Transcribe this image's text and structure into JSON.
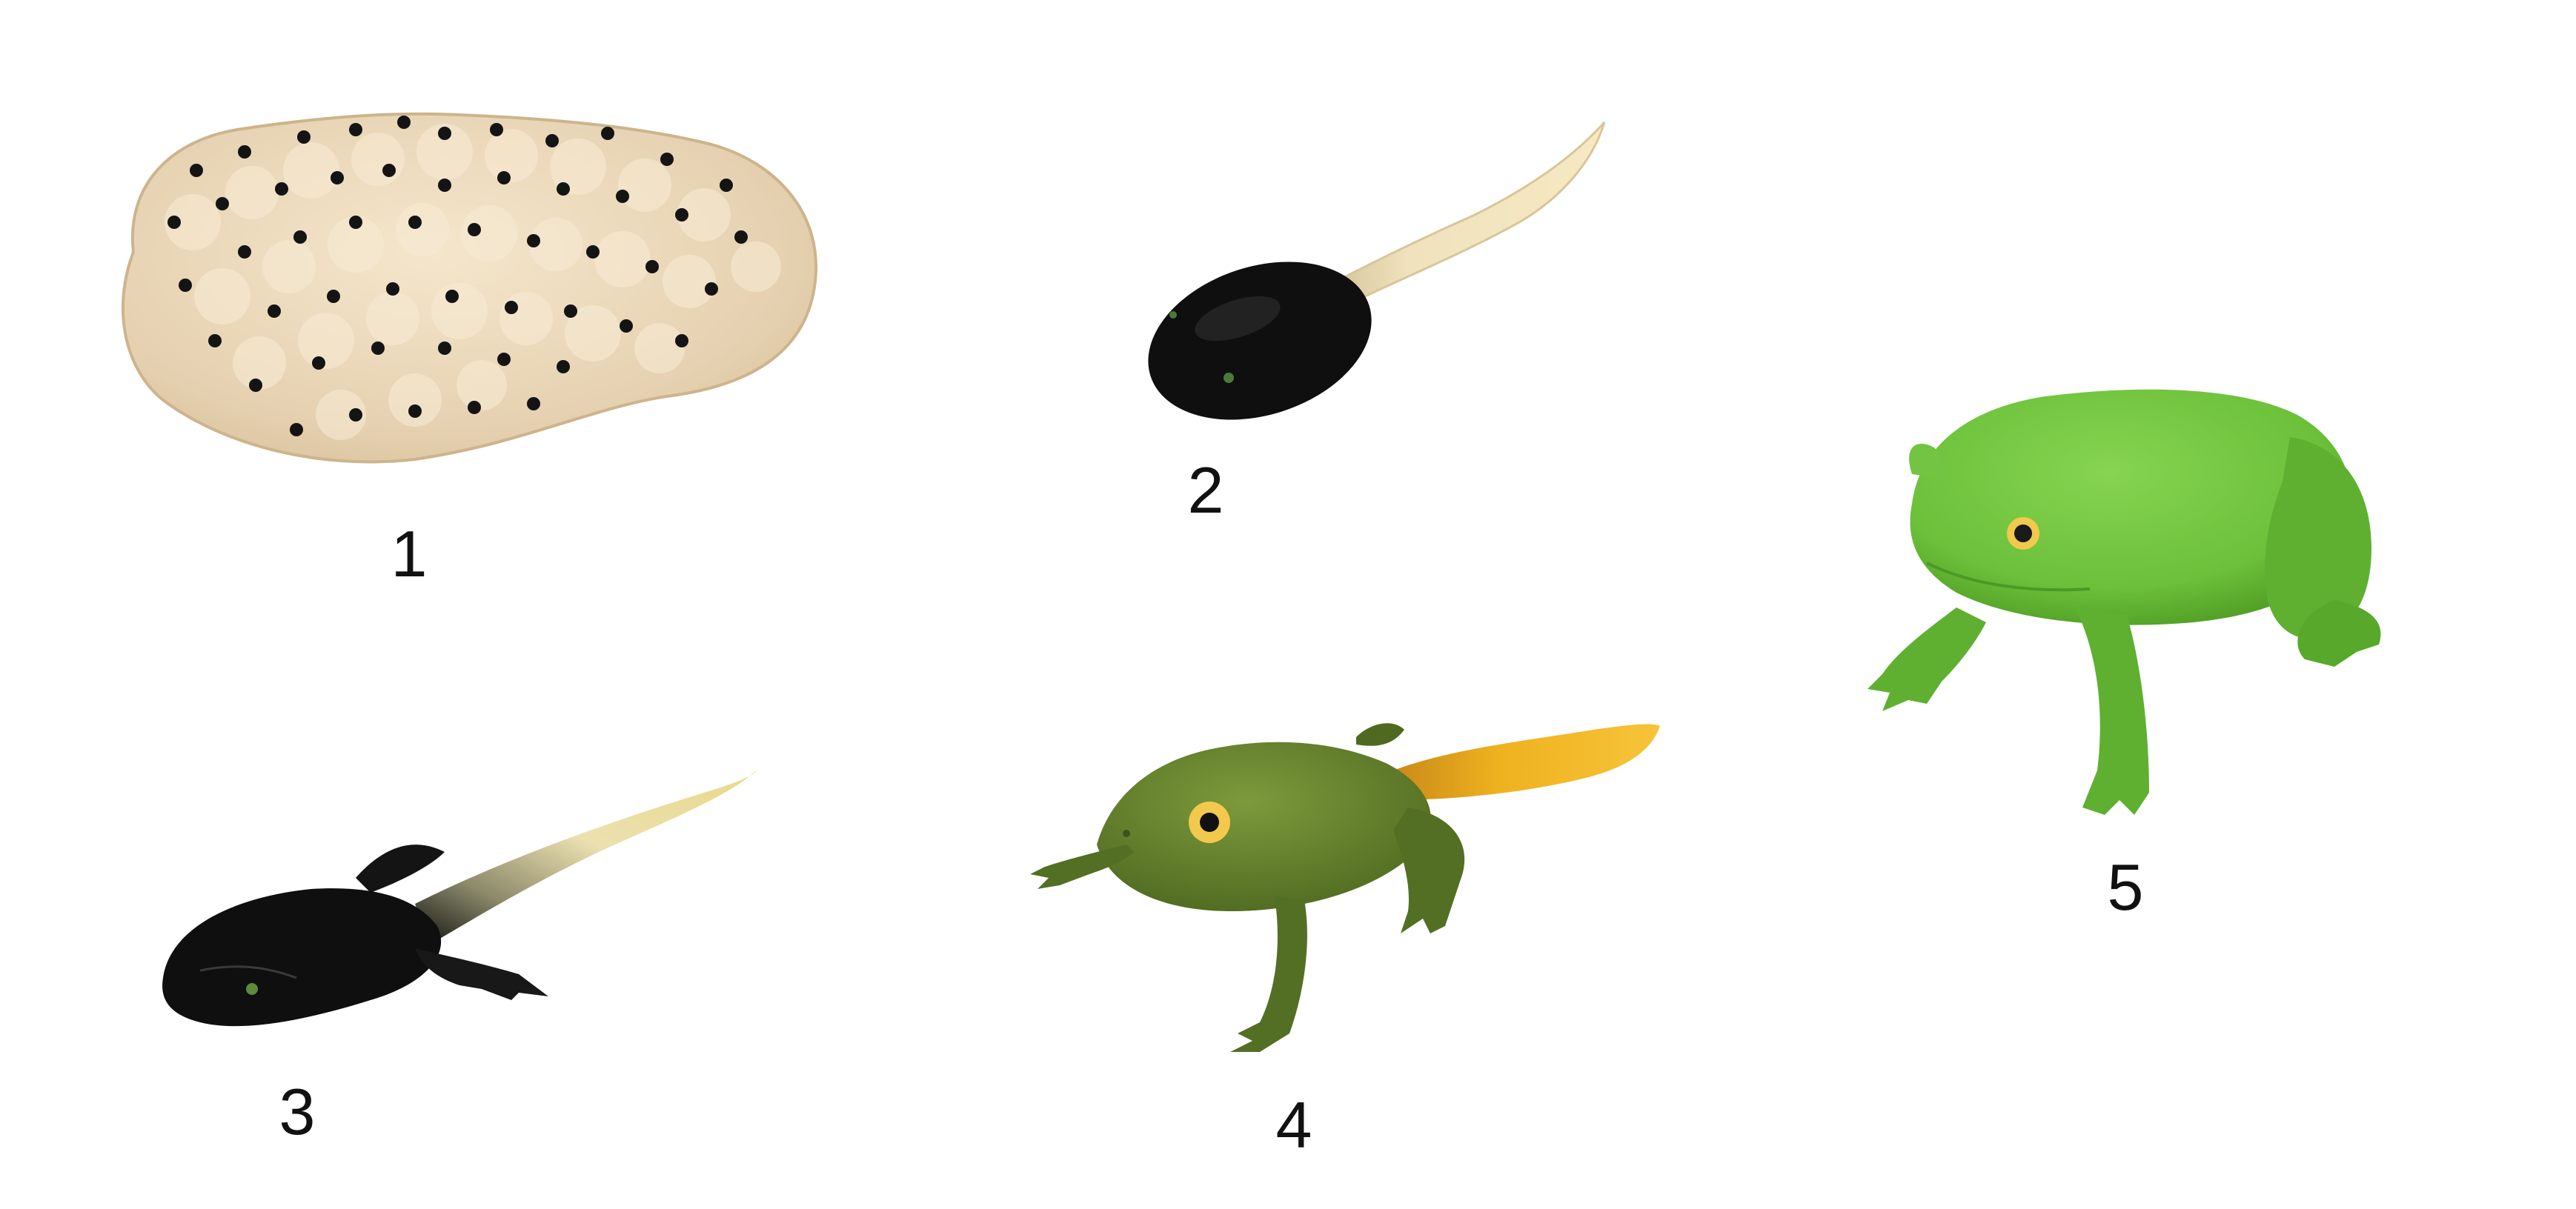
{
  "stages": [
    {
      "number": "1",
      "subject": "frog-spawn"
    },
    {
      "number": "2",
      "subject": "tadpole"
    },
    {
      "number": "3",
      "subject": "tadpole-with-hind-legs"
    },
    {
      "number": "4",
      "subject": "froglet"
    },
    {
      "number": "5",
      "subject": "adult-frog"
    }
  ],
  "colors": {
    "background": "#ffffff",
    "spawn_jelly": "#e6d2b2",
    "egg_dot": "#141414",
    "tadpole_body": "#0f0f0f",
    "tadpole_tail": "#f0e2b6",
    "froglet_body": "#5f7a2a",
    "froglet_tail": "#f0b020",
    "adult_frog": "#6cc03a",
    "eye": "#f2c94c"
  }
}
